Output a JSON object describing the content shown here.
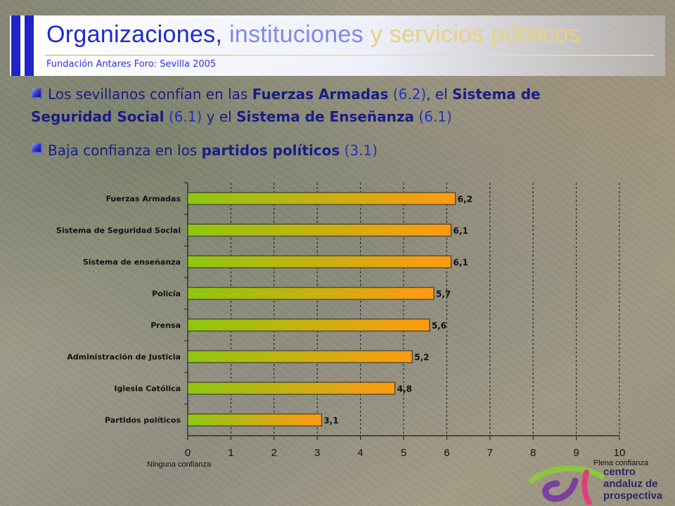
{
  "header": {
    "title_part1": "Organizaciones,",
    "title_part2": "instituciones",
    "title_part3": "y servicios públicos",
    "subtitle": "Fundación Antares Foro: Sevilla 2005"
  },
  "bullets": [
    {
      "segments": [
        {
          "text": "Los sevillanos confían en las ",
          "style": "normal"
        },
        {
          "text": "Fuerzas Armadas",
          "style": "bold"
        },
        {
          "text": " (6.2)",
          "style": "val"
        },
        {
          "text": ", el ",
          "style": "normal"
        },
        {
          "text": "Sistema de Seguridad Social",
          "style": "bold"
        },
        {
          "text": " (6.1)",
          "style": "val"
        },
        {
          "text": " y el ",
          "style": "normal"
        },
        {
          "text": "Sistema de Enseñanza",
          "style": "bold"
        },
        {
          "text": " (6.1)",
          "style": "val"
        }
      ]
    },
    {
      "segments": [
        {
          "text": "Baja confianza en los ",
          "style": "normal"
        },
        {
          "text": "partidos políticos",
          "style": "bold"
        },
        {
          "text": " (3.1)",
          "style": "val"
        }
      ]
    }
  ],
  "colors": {
    "bar_start": "#8ec70f",
    "bar_end": "#ff9a10",
    "bar_stroke": "#2a2a2a",
    "grid": "#1a1a1a",
    "accent": "#1f24c8"
  },
  "chart_data": {
    "type": "bar",
    "orientation": "horizontal",
    "categories": [
      "Fuerzas Armadas",
      "Sistema de Seguridad Social",
      "Sistema de enseñanza",
      "Policía",
      "Prensa",
      "Administración de Justicia",
      "Iglesia Católica",
      "Partidos políticos"
    ],
    "values": [
      6.2,
      6.1,
      6.1,
      5.7,
      5.6,
      5.2,
      4.8,
      3.1
    ],
    "value_labels": [
      "6,2",
      "6,1",
      "6,1",
      "5,7",
      "5,6",
      "5,2",
      "4,8",
      "3,1"
    ],
    "xlim": [
      0,
      10
    ],
    "x_ticks": [
      "0",
      "1",
      "2",
      "3",
      "4",
      "5",
      "6",
      "7",
      "8",
      "9",
      "10"
    ],
    "x_min_label": "Ninguna confianza",
    "x_max_label": "Plena confianza",
    "grid": "vertical-dashed"
  },
  "logo": {
    "line1": "centro",
    "line2": "andaluz de",
    "line3": "prospectiva"
  }
}
